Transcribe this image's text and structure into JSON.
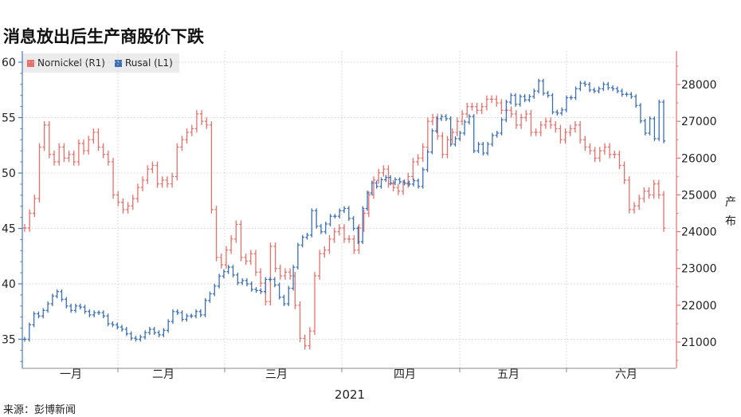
{
  "title": "消息放出后生产商股价下跌",
  "source": "来源：彭博新闻",
  "right_axis_label": "产布",
  "chart_data": {
    "type": "ohlc",
    "x_label": "2021",
    "months": [
      "一月",
      "二月",
      "三月",
      "四月",
      "五月",
      "六月"
    ],
    "y_left": {
      "ticks": [
        35,
        40,
        45,
        50,
        55,
        60
      ],
      "range": [
        32.5,
        60.2
      ]
    },
    "y_right": {
      "ticks": [
        21000,
        22000,
        23000,
        24000,
        25000,
        26000,
        27000,
        28000
      ],
      "range": [
        20390,
        28360
      ]
    },
    "grid": true,
    "legend_position": "top-left",
    "series": [
      {
        "name": "Nornickel (R1)",
        "axis": "right",
        "color": "#e8706c",
        "closes": [
          24100,
          24500,
          24900,
          26300,
          26900,
          26100,
          25900,
          26300,
          26000,
          26100,
          25900,
          26400,
          26200,
          26500,
          26700,
          26300,
          26100,
          25900,
          25000,
          24800,
          24600,
          24700,
          24900,
          25200,
          25400,
          25700,
          25800,
          25300,
          25400,
          25300,
          25500,
          26300,
          26500,
          26700,
          26800,
          27200,
          27000,
          26900,
          24600,
          23300,
          23100,
          23500,
          23800,
          24200,
          23300,
          23200,
          23400,
          22900,
          22600,
          22100,
          23600,
          23000,
          22800,
          22900,
          22800,
          22000,
          21100,
          20900,
          21300,
          22800,
          23400,
          23500,
          23800,
          24000,
          24100,
          23800,
          23800,
          23500,
          24100,
          24500,
          25000,
          25400,
          25600,
          25700,
          25300,
          25200,
          25100,
          25300,
          25500,
          25900,
          26000,
          26300,
          27000,
          27100,
          26600,
          26100,
          26500,
          26700,
          27000,
          27200,
          27400,
          27400,
          27300,
          27400,
          27600,
          27600,
          27500,
          27300,
          27300,
          27200,
          26900,
          27100,
          27200,
          26700,
          26700,
          26900,
          27000,
          26900,
          26800,
          26500,
          26700,
          26800,
          26900,
          26500,
          26300,
          26200,
          26000,
          26200,
          26300,
          26100,
          26100,
          25800,
          25400,
          24600,
          24700,
          24900,
          25100,
          25000,
          25300,
          25000,
          24100
        ]
      },
      {
        "name": "Rusal (L1)",
        "axis": "left",
        "color": "#3b6fb5",
        "closes": [
          35.0,
          36.3,
          37.3,
          37.1,
          37.6,
          38.2,
          38.9,
          39.3,
          38.6,
          38.0,
          37.6,
          38.0,
          37.9,
          37.5,
          37.2,
          37.4,
          37.4,
          37.1,
          36.4,
          36.3,
          36.1,
          35.9,
          35.5,
          35.1,
          35.0,
          35.2,
          35.6,
          35.9,
          35.6,
          35.4,
          35.8,
          36.6,
          37.5,
          37.4,
          36.8,
          37.1,
          37.1,
          37.5,
          37.2,
          38.5,
          39.1,
          39.8,
          40.7,
          41.1,
          41.5,
          40.8,
          40.1,
          40.3,
          40.0,
          39.5,
          39.4,
          39.3,
          40.4,
          40.4,
          39.9,
          38.8,
          38.2,
          39.6,
          41.5,
          43.5,
          44.2,
          44.4,
          46.6,
          45.2,
          44.7,
          45.4,
          46.1,
          46.1,
          46.6,
          46.8,
          45.9,
          45.0,
          43.8,
          46.8,
          48.2,
          49.1,
          48.8,
          49.4,
          49.6,
          49.1,
          49.4,
          49.2,
          49.1,
          49.0,
          49.3,
          48.8,
          50.3,
          51.9,
          53.8,
          54.9,
          55.1,
          54.9,
          52.6,
          53.1,
          53.6,
          54.6,
          55.1,
          52.0,
          52.6,
          51.8,
          52.6,
          53.4,
          53.6,
          54.8,
          56.4,
          57.0,
          56.2,
          56.9,
          56.6,
          56.9,
          57.4,
          58.3,
          57.2,
          57.0,
          55.5,
          55.4,
          55.7,
          56.8,
          56.8,
          57.6,
          58.1,
          58.0,
          57.5,
          57.4,
          57.6,
          58.0,
          57.7,
          57.6,
          57.4,
          57.1,
          57.1,
          56.9,
          56.1,
          54.7,
          53.6,
          54.9,
          53.1,
          56.4,
          52.9
        ]
      }
    ]
  }
}
